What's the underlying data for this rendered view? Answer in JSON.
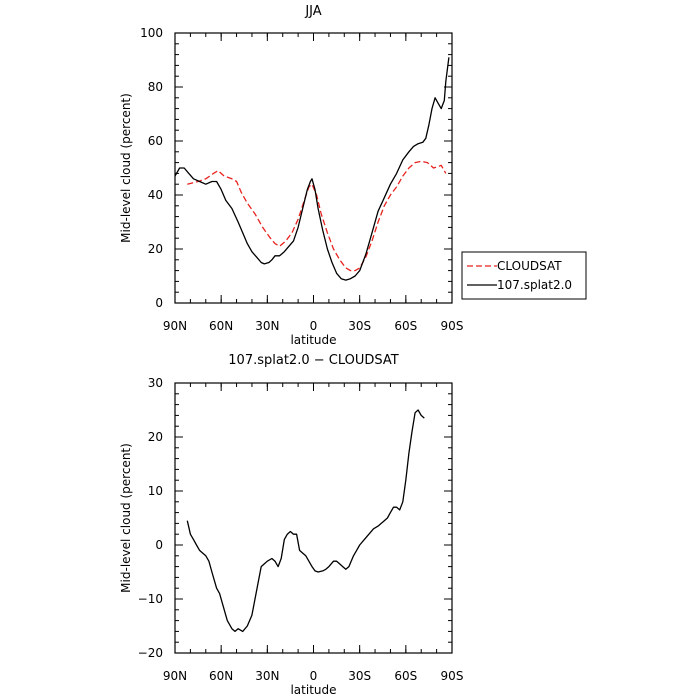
{
  "chart_data": [
    {
      "type": "line",
      "title": "JJA",
      "xlabel": "latitude",
      "ylabel": "Mid-level cloud (percent)",
      "xlim": [
        90,
        -90
      ],
      "ylim": [
        0,
        100
      ],
      "xticks": [
        90,
        60,
        30,
        0,
        -30,
        -60,
        -90
      ],
      "xtick_labels": [
        "90N",
        "60N",
        "30N",
        "0",
        "30S",
        "60S",
        "90S"
      ],
      "yticks": [
        0,
        20,
        40,
        60,
        80,
        100
      ],
      "ytick_labels": [
        "0",
        "20",
        "40",
        "60",
        "80",
        "100"
      ],
      "legend_position": "right",
      "series": [
        {
          "name": "CLOUDSAT",
          "color": "#e8231f",
          "dash": "dashed",
          "points": [
            [
              82,
              44
            ],
            [
              75,
              45
            ],
            [
              70,
              46
            ],
            [
              65,
              48
            ],
            [
              62,
              49
            ],
            [
              58,
              47
            ],
            [
              53,
              46
            ],
            [
              50,
              45
            ],
            [
              47,
              41
            ],
            [
              43,
              37
            ],
            [
              38,
              33
            ],
            [
              33,
              28
            ],
            [
              28,
              24
            ],
            [
              25,
              22
            ],
            [
              22,
              21
            ],
            [
              18,
              23
            ],
            [
              14,
              26
            ],
            [
              10,
              31
            ],
            [
              6,
              38
            ],
            [
              3,
              43
            ],
            [
              1,
              44
            ],
            [
              -2,
              40
            ],
            [
              -5,
              33
            ],
            [
              -9,
              26
            ],
            [
              -13,
              20
            ],
            [
              -17,
              16
            ],
            [
              -21,
              13
            ],
            [
              -24,
              12
            ],
            [
              -27,
              12
            ],
            [
              -30,
              13
            ],
            [
              -34,
              17
            ],
            [
              -38,
              23
            ],
            [
              -42,
              30
            ],
            [
              -46,
              36
            ],
            [
              -50,
              40
            ],
            [
              -54,
              43
            ],
            [
              -58,
              47
            ],
            [
              -62,
              50
            ],
            [
              -66,
              52
            ],
            [
              -70,
              52.5
            ],
            [
              -74,
              52
            ],
            [
              -78,
              50
            ],
            [
              -81,
              50.5
            ],
            [
              -83,
              51
            ],
            [
              -85,
              49
            ],
            [
              -86,
              48
            ]
          ]
        },
        {
          "name": "107.splat2.0",
          "color": "#000000",
          "dash": "solid",
          "points": [
            [
              90,
              47
            ],
            [
              87,
              50
            ],
            [
              84,
              50
            ],
            [
              81,
              48
            ],
            [
              78,
              46
            ],
            [
              74,
              45
            ],
            [
              70,
              44
            ],
            [
              66,
              45
            ],
            [
              63,
              45
            ],
            [
              60,
              42
            ],
            [
              57,
              38
            ],
            [
              53,
              35
            ],
            [
              49,
              30
            ],
            [
              46,
              26
            ],
            [
              43,
              22
            ],
            [
              40,
              19
            ],
            [
              37,
              17
            ],
            [
              34,
              15
            ],
            [
              32,
              14.5
            ],
            [
              29,
              15
            ],
            [
              27,
              16
            ],
            [
              25,
              17.5
            ],
            [
              22,
              17.5
            ],
            [
              19,
              19
            ],
            [
              16,
              21
            ],
            [
              13,
              23
            ],
            [
              10,
              28
            ],
            [
              7,
              35
            ],
            [
              4,
              42
            ],
            [
              2,
              45
            ],
            [
              1,
              46
            ],
            [
              -1,
              42
            ],
            [
              -3,
              35
            ],
            [
              -6,
              27
            ],
            [
              -9,
              20
            ],
            [
              -12,
              15
            ],
            [
              -15,
              11
            ],
            [
              -18,
              9
            ],
            [
              -21,
              8.5
            ],
            [
              -24,
              9
            ],
            [
              -27,
              10
            ],
            [
              -30,
              12
            ],
            [
              -34,
              18
            ],
            [
              -38,
              26
            ],
            [
              -42,
              34
            ],
            [
              -46,
              39
            ],
            [
              -50,
              44
            ],
            [
              -54,
              48
            ],
            [
              -58,
              53
            ],
            [
              -62,
              56
            ],
            [
              -65,
              58
            ],
            [
              -68,
              59
            ],
            [
              -71,
              59.5
            ],
            [
              -73,
              61
            ],
            [
              -75,
              66
            ],
            [
              -77,
              72
            ],
            [
              -79,
              76
            ],
            [
              -81,
              74
            ],
            [
              -83,
              72
            ],
            [
              -85,
              75
            ],
            [
              -86,
              82
            ],
            [
              -88,
              91
            ]
          ]
        }
      ]
    },
    {
      "type": "line",
      "title": "107.splat2.0 − CLOUDSAT",
      "xlabel": "latitude",
      "ylabel": "Mid-level cloud (percent)",
      "xlim": [
        90,
        -90
      ],
      "ylim": [
        -20,
        30
      ],
      "xticks": [
        90,
        60,
        30,
        0,
        -30,
        -60,
        -90
      ],
      "xtick_labels": [
        "90N",
        "60N",
        "30N",
        "0",
        "30S",
        "60S",
        "90S"
      ],
      "yticks": [
        -20,
        -10,
        0,
        10,
        20,
        30
      ],
      "ytick_labels": [
        "−20",
        "−10",
        "0",
        "10",
        "20",
        "30"
      ],
      "series": [
        {
          "color": "#000000",
          "dash": "solid",
          "points": [
            [
              82,
              4.5
            ],
            [
              80,
              2
            ],
            [
              78,
              1
            ],
            [
              76,
              0
            ],
            [
              74,
              -1
            ],
            [
              72,
              -1.5
            ],
            [
              70,
              -2
            ],
            [
              68,
              -3
            ],
            [
              66,
              -5
            ],
            [
              63,
              -8
            ],
            [
              61,
              -9
            ],
            [
              59,
              -11
            ],
            [
              56,
              -14
            ],
            [
              53,
              -15.5
            ],
            [
              51,
              -16
            ],
            [
              49,
              -15.5
            ],
            [
              46,
              -16
            ],
            [
              43,
              -15
            ],
            [
              40,
              -13
            ],
            [
              38,
              -10
            ],
            [
              36,
              -7
            ],
            [
              34,
              -4
            ],
            [
              32,
              -3.5
            ],
            [
              30,
              -3
            ],
            [
              27,
              -2.5
            ],
            [
              25,
              -3
            ],
            [
              23,
              -4
            ],
            [
              21,
              -2.5
            ],
            [
              19,
              1
            ],
            [
              17,
              2
            ],
            [
              15,
              2.5
            ],
            [
              13,
              2
            ],
            [
              11,
              2
            ],
            [
              9,
              -1
            ],
            [
              7,
              -1.5
            ],
            [
              5,
              -2
            ],
            [
              3,
              -3
            ],
            [
              1,
              -4
            ],
            [
              -1,
              -4.8
            ],
            [
              -3,
              -5
            ],
            [
              -6,
              -4.8
            ],
            [
              -8,
              -4.5
            ],
            [
              -10,
              -4
            ],
            [
              -13,
              -3
            ],
            [
              -15,
              -3
            ],
            [
              -17,
              -3.5
            ],
            [
              -19,
              -4
            ],
            [
              -21,
              -4.5
            ],
            [
              -23,
              -4
            ],
            [
              -26,
              -2
            ],
            [
              -28,
              -1
            ],
            [
              -30,
              0
            ],
            [
              -33,
              1
            ],
            [
              -36,
              2
            ],
            [
              -39,
              3
            ],
            [
              -42,
              3.5
            ],
            [
              -44,
              4
            ],
            [
              -46,
              4.5
            ],
            [
              -48,
              5
            ],
            [
              -50,
              6
            ],
            [
              -52,
              7
            ],
            [
              -54,
              7
            ],
            [
              -56,
              6.5
            ],
            [
              -58,
              8
            ],
            [
              -60,
              12
            ],
            [
              -62,
              17
            ],
            [
              -64,
              21
            ],
            [
              -66,
              24.5
            ],
            [
              -68,
              25
            ],
            [
              -70,
              24
            ],
            [
              -72,
              23.5
            ]
          ]
        }
      ]
    }
  ]
}
